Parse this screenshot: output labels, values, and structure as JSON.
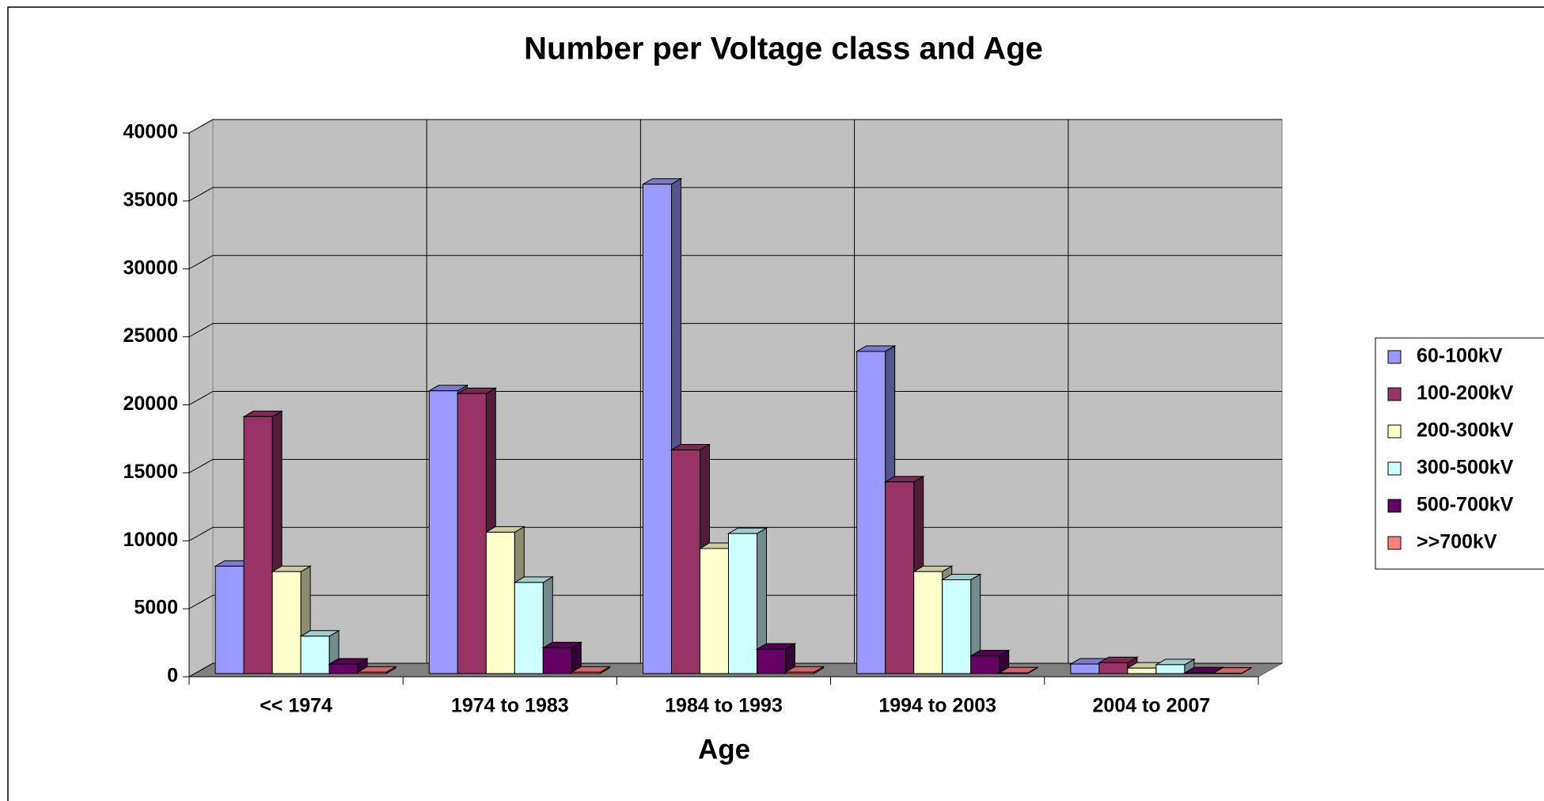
{
  "chart_data": {
    "type": "bar",
    "title": "Number per Voltage class and Age",
    "x_label": "Age",
    "categories": [
      "<< 1974",
      "1974 to 1983",
      "1984 to 1993",
      "1994 to 2003",
      "2004 to 2007"
    ],
    "series": [
      {
        "name": "60-100kV",
        "color": "#9999ff",
        "values": [
          7900,
          20800,
          36000,
          23700,
          700
        ]
      },
      {
        "name": "100-200kV",
        "color": "#993366",
        "values": [
          18900,
          20600,
          16450,
          14100,
          800
        ]
      },
      {
        "name": "200-300kV",
        "color": "#ffffcc",
        "values": [
          7500,
          10400,
          9200,
          7500,
          400
        ]
      },
      {
        "name": "300-500kV",
        "color": "#ccffff",
        "values": [
          2750,
          6700,
          10300,
          6900,
          650
        ]
      },
      {
        "name": "500-700kV",
        "color": "#660066",
        "values": [
          700,
          1900,
          1800,
          1300,
          50
        ]
      },
      {
        "name": ">>700kV",
        "color": "#ff8080",
        "values": [
          100,
          100,
          100,
          50,
          20
        ]
      }
    ],
    "ylim": [
      0,
      40000
    ],
    "yticks": [
      0,
      5000,
      10000,
      15000,
      20000,
      25000,
      30000,
      35000,
      40000
    ],
    "grid": true,
    "legend": "right"
  }
}
